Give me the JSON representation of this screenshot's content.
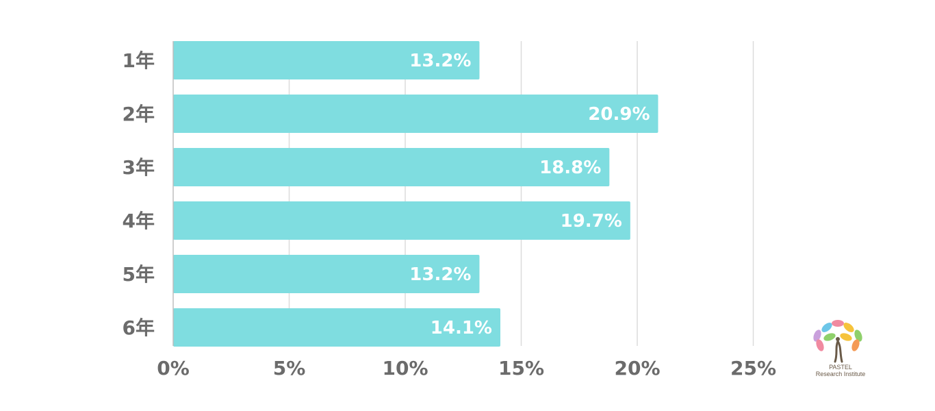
{
  "chart_data": {
    "type": "bar",
    "orientation": "horizontal",
    "categories": [
      "1年",
      "2年",
      "3年",
      "4年",
      "5年",
      "6年"
    ],
    "values": [
      13.2,
      20.9,
      18.8,
      19.7,
      13.2,
      14.1
    ],
    "value_labels": [
      "13.2%",
      "20.9%",
      "18.8%",
      "19.7%",
      "13.2%",
      "14.1%"
    ],
    "x_ticks": [
      0,
      5,
      10,
      15,
      20,
      25
    ],
    "x_tick_labels": [
      "0%",
      "5%",
      "10%",
      "15%",
      "20%",
      "25%"
    ],
    "xlim": [
      0,
      25
    ],
    "grid": true,
    "bar_color": "#7fdde0",
    "title": "",
    "xlabel": "",
    "ylabel": ""
  },
  "logo": {
    "line1": "PASTEL",
    "line2": "Research Institute",
    "colors": [
      "#f08aa0",
      "#f6c33b",
      "#8fd06b",
      "#6cc6e8",
      "#c9a0dc",
      "#f49a55"
    ]
  }
}
